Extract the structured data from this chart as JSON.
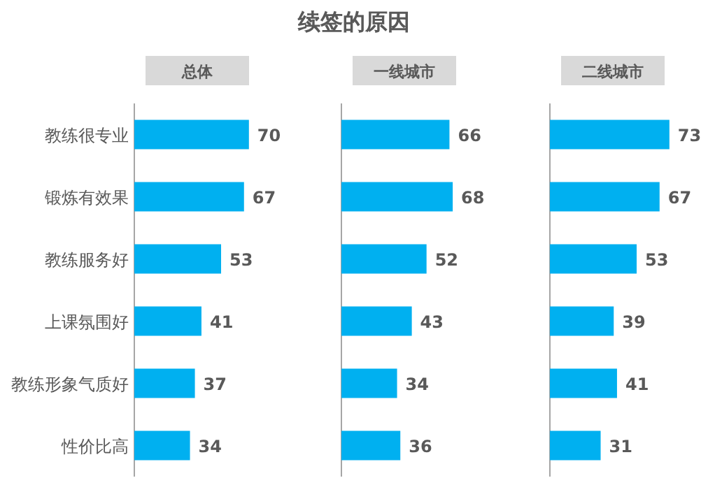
{
  "chart_data": [
    {
      "type": "bar",
      "orientation": "horizontal",
      "subtitle": "总体",
      "categories": [
        "教练很专业",
        "锻炼有效果",
        "教练服务好",
        "上课氛围好",
        "教练形象气质好",
        "性价比高"
      ],
      "values": [
        70,
        67,
        53,
        41,
        37,
        34
      ],
      "color": "#00b0f0",
      "data_labels": true
    },
    {
      "type": "bar",
      "orientation": "horizontal",
      "title": "续签的原因",
      "subtitle": "一线城市",
      "categories": [
        null,
        null,
        null,
        null,
        null,
        null
      ],
      "values": [
        66,
        68,
        52,
        43,
        34,
        36
      ],
      "color": "#00b0f0",
      "data_labels": true
    },
    {
      "type": "bar",
      "orientation": "horizontal",
      "subtitle": "二线城市",
      "categories": [
        null,
        null,
        null,
        null,
        null,
        null
      ],
      "values": [
        73,
        67,
        53,
        39,
        41,
        31
      ],
      "color": "#00b0f0",
      "data_labels": true
    }
  ]
}
